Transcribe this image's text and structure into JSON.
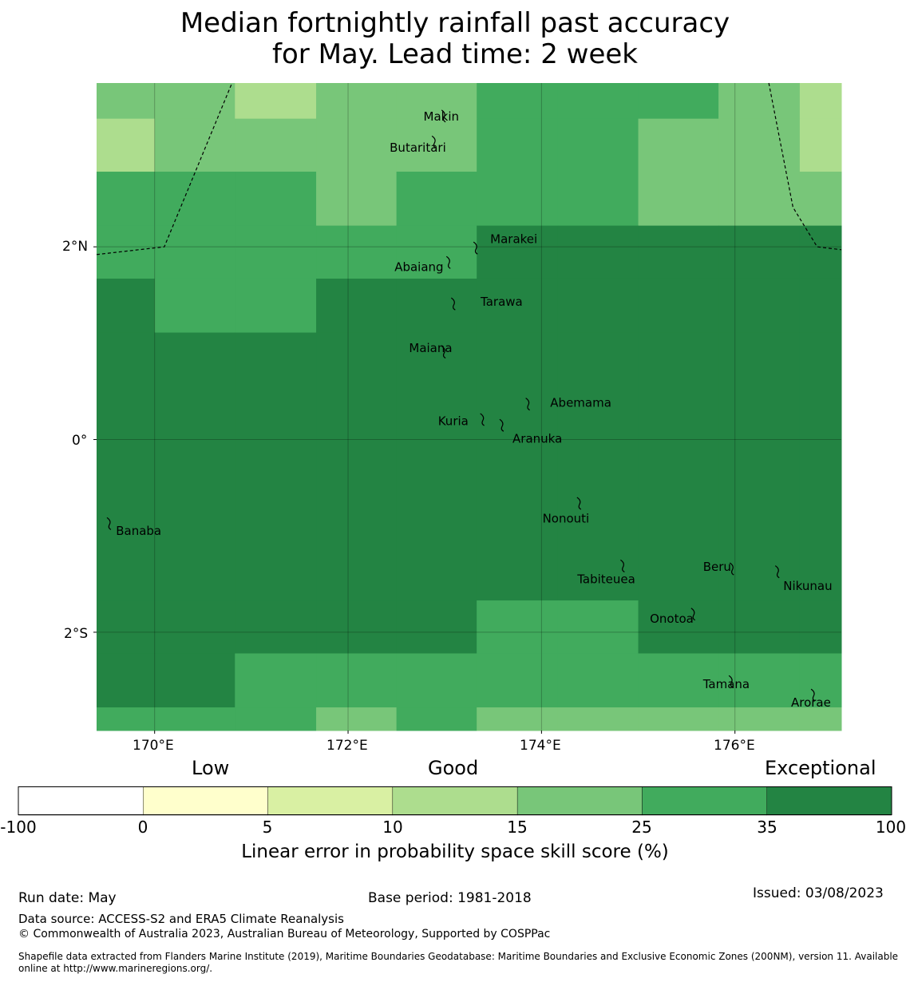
{
  "title_line1": "Median fortnightly rainfall past accuracy",
  "title_line2": "for May. Lead time: 2 week",
  "map": {
    "lon_range": [
      169.4,
      177.1
    ],
    "lat_range": [
      -3.02,
      3.7
    ],
    "grid_lons": [
      170,
      172,
      174,
      176
    ],
    "grid_lats": [
      2,
      0,
      -2
    ],
    "lon_labels": [
      "170°E",
      "172°E",
      "174°E",
      "176°E"
    ],
    "lat_labels": [
      "2°N",
      "0°",
      "2°S"
    ],
    "category_colors": [
      "#ffffff",
      "#ffffcc",
      "#d9f0a3",
      "#addd8e",
      "#78c679",
      "#41ab5d",
      "#238443"
    ],
    "cell_rows": [
      {
        "lat_range": [
          3.33,
          3.7
        ],
        "cells": [
          4,
          4,
          3,
          4,
          4,
          5,
          5,
          5,
          4,
          3
        ]
      },
      {
        "lat_range": [
          2.78,
          3.33
        ],
        "cells": [
          3,
          4,
          4,
          4,
          4,
          5,
          5,
          4,
          4,
          3
        ]
      },
      {
        "lat_range": [
          2.22,
          2.78
        ],
        "cells": [
          5,
          5,
          5,
          4,
          5,
          5,
          5,
          4,
          4,
          4
        ]
      },
      {
        "lat_range": [
          1.67,
          2.22
        ],
        "cells": [
          5,
          5,
          5,
          5,
          5,
          6,
          6,
          6,
          6,
          6
        ]
      },
      {
        "lat_range": [
          1.11,
          1.67
        ],
        "cells": [
          6,
          5,
          5,
          6,
          6,
          6,
          6,
          6,
          6,
          6
        ]
      },
      {
        "lat_range": [
          -1.67,
          1.11
        ],
        "cells": [
          6,
          6,
          6,
          6,
          6,
          6,
          6,
          6,
          6,
          6
        ]
      },
      {
        "lat_range": [
          -2.22,
          -1.67
        ],
        "cells": [
          6,
          6,
          6,
          6,
          6,
          5,
          5,
          6,
          6,
          6
        ]
      },
      {
        "lat_range": [
          -2.78,
          -2.22
        ],
        "cells": [
          6,
          6,
          5,
          5,
          5,
          5,
          5,
          5,
          5,
          5
        ]
      },
      {
        "lat_range": [
          -3.02,
          -2.78
        ],
        "cells": [
          5,
          5,
          5,
          4,
          5,
          4,
          4,
          4,
          4,
          4
        ]
      }
    ],
    "cell_lon_edges": [
      169.4,
      170.0,
      170.83,
      171.67,
      172.5,
      173.33,
      174.17,
      175.0,
      175.83,
      176.67,
      177.1
    ],
    "boundaries": [
      [
        [
          169.4,
          1.92
        ],
        [
          170.1,
          2.0
        ],
        [
          170.8,
          3.7
        ]
      ],
      [
        [
          176.35,
          3.7
        ],
        [
          176.6,
          2.41
        ],
        [
          176.85,
          2.0
        ],
        [
          177.1,
          1.97
        ]
      ]
    ],
    "islands": [
      {
        "name": "Makin",
        "lon": 173.0,
        "lat": 3.37,
        "label_lon": 172.78,
        "label_lat": 3.35
      },
      {
        "name": "Butaritari",
        "lon": 172.9,
        "lat": 3.1,
        "label_lon": 172.43,
        "label_lat": 3.03
      },
      {
        "name": "Marakei",
        "lon": 173.33,
        "lat": 2.0,
        "label_lon": 173.47,
        "label_lat": 2.08
      },
      {
        "name": "Abaiang",
        "lon": 173.05,
        "lat": 1.85,
        "label_lon": 172.48,
        "label_lat": 1.79
      },
      {
        "name": "Tarawa",
        "lon": 173.1,
        "lat": 1.42,
        "label_lon": 173.37,
        "label_lat": 1.43
      },
      {
        "name": "Maiana",
        "lon": 173.0,
        "lat": 0.92,
        "label_lon": 172.63,
        "label_lat": 0.95
      },
      {
        "name": "Abemama",
        "lon": 173.87,
        "lat": 0.38,
        "label_lon": 174.09,
        "label_lat": 0.38
      },
      {
        "name": "Kuria",
        "lon": 173.4,
        "lat": 0.22,
        "label_lon": 172.93,
        "label_lat": 0.19
      },
      {
        "name": "Aranuka",
        "lon": 173.6,
        "lat": 0.16,
        "label_lon": 173.7,
        "label_lat": 0.01
      },
      {
        "name": "Nonouti",
        "lon": 174.4,
        "lat": -0.65,
        "label_lon": 174.01,
        "label_lat": -0.82
      },
      {
        "name": "Banaba",
        "lon": 169.54,
        "lat": -0.86,
        "label_lon": 169.6,
        "label_lat": -0.95
      },
      {
        "name": "Tabiteuea",
        "lon": 174.85,
        "lat": -1.3,
        "label_lon": 174.37,
        "label_lat": -1.45
      },
      {
        "name": "Beru",
        "lon": 175.98,
        "lat": -1.33,
        "label_lon": 175.67,
        "label_lat": -1.32
      },
      {
        "name": "Nikunau",
        "lon": 176.45,
        "lat": -1.36,
        "label_lon": 176.5,
        "label_lat": -1.52
      },
      {
        "name": "Onotoa",
        "lon": 175.58,
        "lat": -1.8,
        "label_lon": 175.12,
        "label_lat": -1.86
      },
      {
        "name": "Tamana",
        "lon": 175.97,
        "lat": -2.5,
        "label_lon": 175.67,
        "label_lat": -2.54
      },
      {
        "name": "Arorae",
        "lon": 176.82,
        "lat": -2.64,
        "label_lon": 176.58,
        "label_lat": -2.73
      }
    ]
  },
  "colorbar": {
    "category_words": [
      "Low",
      "Good",
      "Exceptional"
    ],
    "ticks": [
      "-100",
      "0",
      "5",
      "10",
      "15",
      "25",
      "35",
      "100"
    ],
    "colors": [
      "#ffffff",
      "#ffffcc",
      "#d9f0a3",
      "#addd8e",
      "#78c679",
      "#41ab5d",
      "#238443"
    ],
    "label": "Linear error in probability space skill score (%)"
  },
  "footer": {
    "run_date": "Run date: May",
    "base_period": "Base period: 1981-2018",
    "issued": "Issued: 03/08/2023",
    "data_source": "Data source: ACCESS-S2 and ERA5 Climate Reanalysis",
    "copyright": "© Commonwealth of Australia 2023, Australian Bureau of Meteorology, Supported by COSPPac",
    "shapefile": "Shapefile data extracted from Flanders Marine Institute (2019), Maritime Boundaries Geodatabase: Maritime Boundaries and Exclusive Economic Zones (200NM), version 11. Available online at http://www.marineregions.org/."
  }
}
